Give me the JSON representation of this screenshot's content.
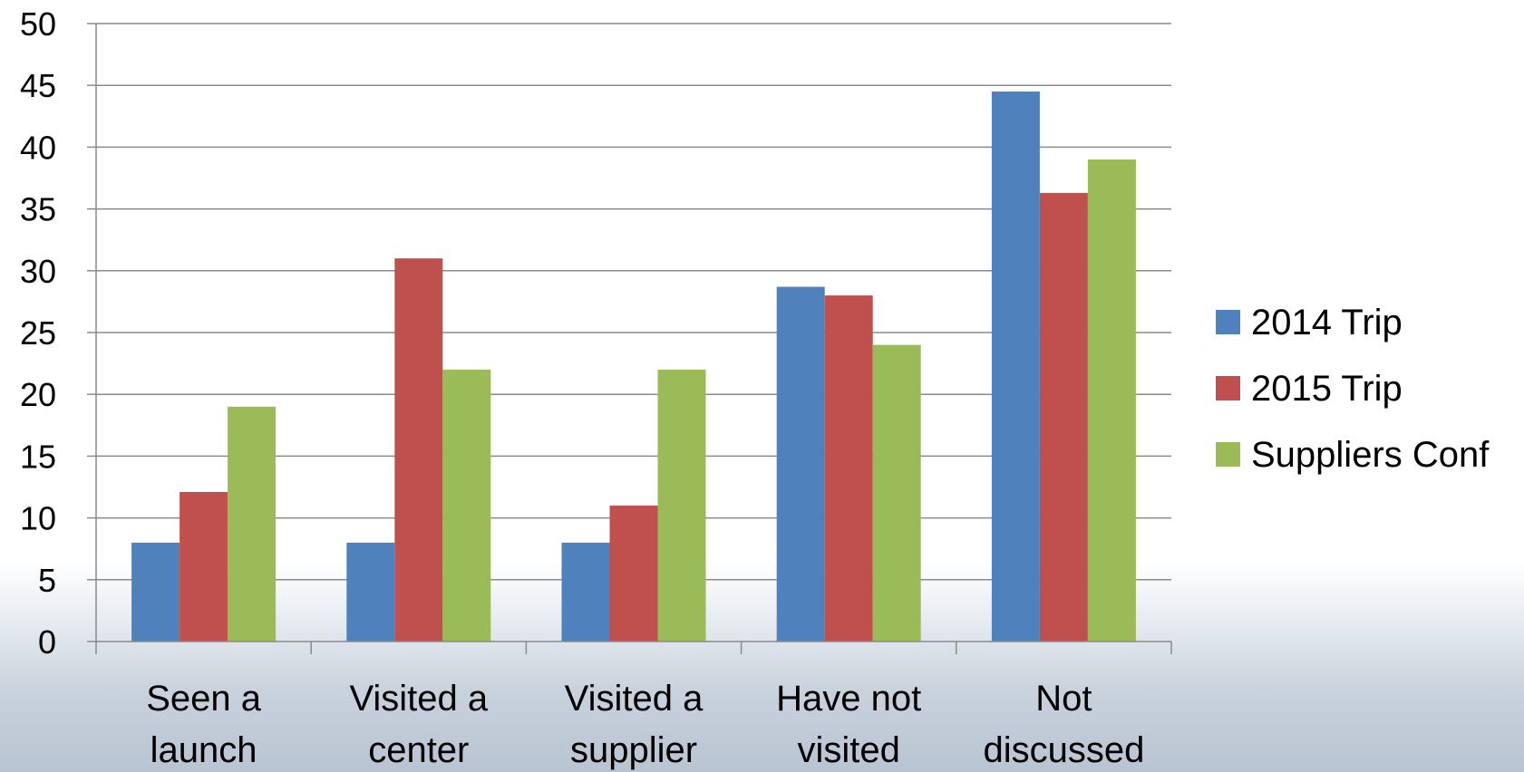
{
  "chart_data": {
    "type": "bar",
    "categories": [
      [
        "Seen a",
        "launch"
      ],
      [
        "Visited a",
        "center"
      ],
      [
        "Visited a",
        "supplier"
      ],
      [
        "Have not",
        "visited"
      ],
      [
        "Not",
        "discussed"
      ]
    ],
    "series": [
      {
        "name": "2014 Trip",
        "color": "#4f81bd",
        "values": [
          8,
          8,
          8,
          28.7,
          44.5
        ]
      },
      {
        "name": "2015 Trip",
        "color": "#c0504d",
        "values": [
          12.1,
          31,
          11,
          28,
          36.3
        ]
      },
      {
        "name": "Suppliers Conf",
        "color": "#9bbb59",
        "values": [
          19,
          22,
          22,
          24,
          39
        ]
      }
    ],
    "ylim": [
      0,
      50
    ],
    "yticks": [
      0,
      5,
      10,
      15,
      20,
      25,
      30,
      35,
      40,
      45,
      50
    ],
    "grid": true,
    "legend_position": "right",
    "title": "",
    "xlabel": "",
    "ylabel": ""
  }
}
